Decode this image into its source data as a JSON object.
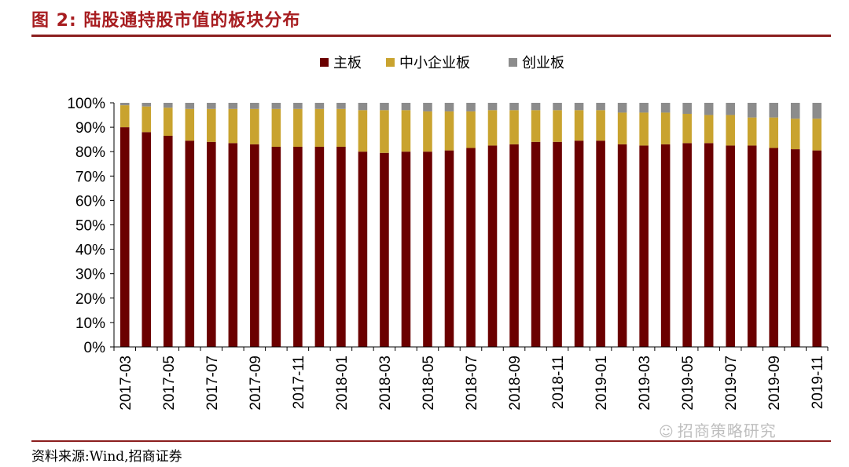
{
  "header": {
    "title": "图 2:  陆股通持股市值的板块分布"
  },
  "footer": {
    "source": "资料来源:Wind,招商证券",
    "watermark": "招商策略研究",
    "watermark_icon": "wechat-icon"
  },
  "colors": {
    "main_board": "#6b0000",
    "sme_board": "#c9a32f",
    "chinext_board": "#8c8c8c",
    "title_red": "#a71d20",
    "rule": "#8b1e1e"
  },
  "chart_data": {
    "type": "bar",
    "stacked": true,
    "legend_position": "top-center",
    "grid": false,
    "y_format": "percent",
    "ylim": [
      0,
      100
    ],
    "y_ticks": [
      0,
      10,
      20,
      30,
      40,
      50,
      60,
      70,
      80,
      90,
      100
    ],
    "y_tick_labels": [
      "0%",
      "10%",
      "20%",
      "30%",
      "40%",
      "50%",
      "60%",
      "70%",
      "80%",
      "90%",
      "100%"
    ],
    "categories": [
      "2017-03",
      "2017-04",
      "2017-05",
      "2017-06",
      "2017-07",
      "2017-08",
      "2017-09",
      "2017-10",
      "2017-11",
      "2017-12",
      "2018-01",
      "2018-02",
      "2018-03",
      "2018-04",
      "2018-05",
      "2018-06",
      "2018-07",
      "2018-08",
      "2018-09",
      "2018-10",
      "2018-11",
      "2018-12",
      "2019-01",
      "2019-02",
      "2019-03",
      "2019-04",
      "2019-05",
      "2019-06",
      "2019-07",
      "2019-08",
      "2019-09",
      "2019-10",
      "2019-11"
    ],
    "x_tick_labels": [
      "2017-03",
      "2017-05",
      "2017-07",
      "2017-09",
      "2017-11",
      "2018-01",
      "2018-03",
      "2018-05",
      "2018-07",
      "2018-09",
      "2018-11",
      "2019-01",
      "2019-03",
      "2019-05",
      "2019-07",
      "2019-09",
      "2019-11"
    ],
    "series": [
      {
        "name": "主板",
        "color": "#6b0000",
        "values": [
          90,
          88,
          86.5,
          84.5,
          84,
          83.5,
          83,
          82,
          82,
          82,
          82,
          80,
          79.5,
          80,
          80,
          80.5,
          81.5,
          82.5,
          83,
          84,
          84,
          84.5,
          84.5,
          83,
          82.5,
          83,
          83.5,
          83.5,
          82.5,
          82.5,
          81.5,
          81,
          80.5
        ]
      },
      {
        "name": "中小企业板",
        "color": "#c9a32f",
        "values": [
          9,
          10.5,
          11.5,
          13,
          13.5,
          14,
          14.5,
          15.5,
          15.5,
          15.5,
          15.5,
          17,
          17.5,
          17,
          16.5,
          16,
          15,
          14.5,
          14,
          13,
          13,
          12.5,
          12.5,
          13,
          13.5,
          13,
          12,
          11.5,
          12.5,
          11.5,
          12.5,
          12.5,
          13
        ]
      },
      {
        "name": "创业板",
        "color": "#8c8c8c",
        "values": [
          1,
          1.5,
          2,
          2.5,
          2.5,
          2.5,
          2.5,
          2.5,
          2.5,
          2.5,
          2.5,
          3,
          3,
          3,
          3.5,
          3.5,
          3.5,
          3,
          3,
          3,
          3,
          3,
          3,
          4,
          4,
          4,
          4.5,
          5,
          5,
          6,
          6,
          6.5,
          6.5
        ]
      }
    ]
  }
}
